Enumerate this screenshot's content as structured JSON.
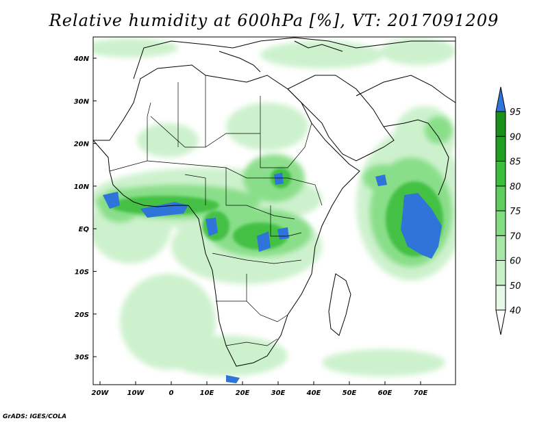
{
  "title": "Relative humidity at 600hPa [%], VT: 2017091209",
  "credit": "GrADS: IGES/COLA",
  "map": {
    "lon_ticks": [
      "20W",
      "10W",
      "0",
      "10E",
      "20E",
      "30E",
      "40E",
      "50E",
      "60E",
      "70E"
    ],
    "lat_ticks": [
      "40N",
      "30N",
      "20N",
      "10N",
      "EQ",
      "10S",
      "20S",
      "30S"
    ]
  },
  "colorbar": {
    "levels": [
      "40",
      "50",
      "60",
      "70",
      "75",
      "80",
      "85",
      "90",
      "95"
    ],
    "colors": [
      "#ffffff",
      "#e6f9e6",
      "#c8f0c8",
      "#a6e6a6",
      "#82dc82",
      "#5ecd5e",
      "#3cbd3c",
      "#229e22",
      "#1a8f1a",
      "#2f74d9"
    ],
    "overflow_color": "#2f74d9"
  }
}
